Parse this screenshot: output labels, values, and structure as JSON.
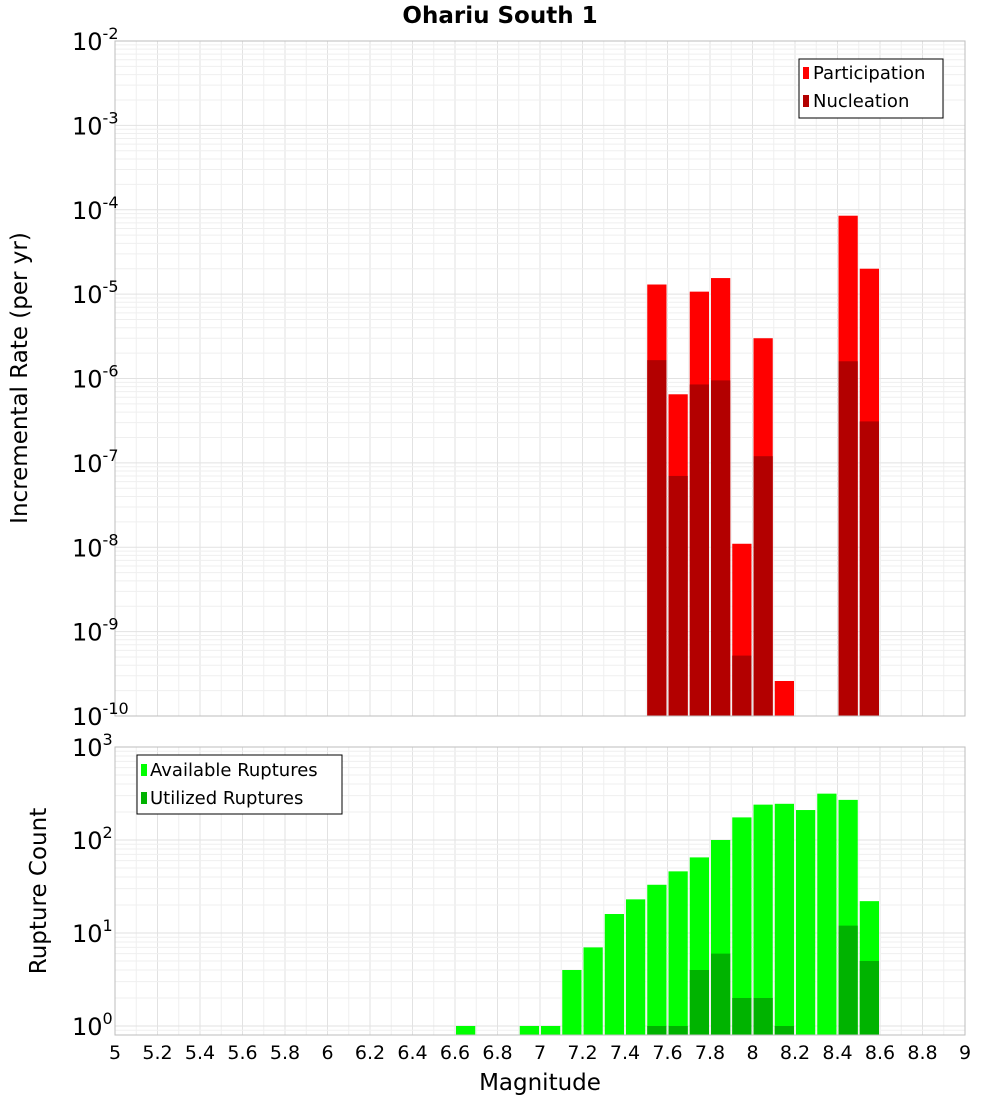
{
  "title": "Ohariu South 1",
  "xlabel": "Magnitude",
  "x_ticks": [
    "5",
    "5.2",
    "5.4",
    "5.6",
    "5.8",
    "6",
    "6.2",
    "6.4",
    "6.6",
    "6.8",
    "7",
    "7.2",
    "7.4",
    "7.6",
    "7.8",
    "8",
    "8.2",
    "8.4",
    "8.6",
    "8.8",
    "9"
  ],
  "chart_data": [
    {
      "type": "bar",
      "title": "Ohariu South 1",
      "ylabel": "Incremental Rate (per yr)",
      "yscale": "log",
      "ylim": [
        1e-10,
        0.01
      ],
      "xlim": [
        5,
        9
      ],
      "y_tick_base": "10",
      "y_tick_exponents": [
        "-10",
        "-9",
        "-8",
        "-7",
        "-6",
        "-5",
        "-4",
        "-3",
        "-2"
      ],
      "legend": {
        "position": "top-right",
        "entries": [
          "Participation",
          "Nucleation"
        ]
      },
      "bin_width": 0.1,
      "series": [
        {
          "name": "Participation",
          "color": "#ff0000",
          "x": [
            7.55,
            7.65,
            7.75,
            7.85,
            7.95,
            8.05,
            8.15,
            8.45,
            8.55
          ],
          "values": [
            1.3e-05,
            6.5e-07,
            1.07e-05,
            1.55e-05,
            1.1e-08,
            3e-06,
            2.6e-10,
            8.5e-05,
            2e-05
          ]
        },
        {
          "name": "Nucleation",
          "color": "#b30000",
          "x": [
            7.55,
            7.65,
            7.75,
            7.85,
            7.95,
            8.05,
            8.45,
            8.55
          ],
          "values": [
            1.65e-06,
            7e-08,
            8.5e-07,
            9.5e-07,
            5.2e-10,
            1.2e-07,
            1.6e-06,
            3.1e-07
          ]
        }
      ]
    },
    {
      "type": "bar",
      "ylabel": "Rupture Count",
      "xlabel": "Magnitude",
      "yscale": "log",
      "ylim": [
        0.8,
        1000
      ],
      "xlim": [
        5,
        9
      ],
      "y_tick_base": "10",
      "y_tick_exponents": [
        "0",
        "1",
        "2",
        "3"
      ],
      "legend": {
        "position": "top-left",
        "entries": [
          "Available Ruptures",
          "Utilized Ruptures"
        ]
      },
      "bin_width": 0.1,
      "series": [
        {
          "name": "Available Ruptures",
          "color": "#00ff00",
          "x": [
            6.65,
            6.95,
            7.05,
            7.15,
            7.25,
            7.35,
            7.45,
            7.55,
            7.65,
            7.75,
            7.85,
            7.95,
            8.05,
            8.15,
            8.25,
            8.35,
            8.45,
            8.55
          ],
          "values": [
            1,
            1,
            1,
            4,
            7,
            16,
            23,
            33,
            46,
            65,
            100,
            175,
            240,
            245,
            210,
            315,
            270,
            22
          ]
        },
        {
          "name": "Utilized Ruptures",
          "color": "#00b300",
          "x": [
            7.55,
            7.65,
            7.75,
            7.85,
            7.95,
            8.05,
            8.15,
            8.45,
            8.55
          ],
          "values": [
            1,
            1,
            4,
            6,
            2,
            2,
            1,
            12,
            5
          ]
        }
      ]
    }
  ]
}
